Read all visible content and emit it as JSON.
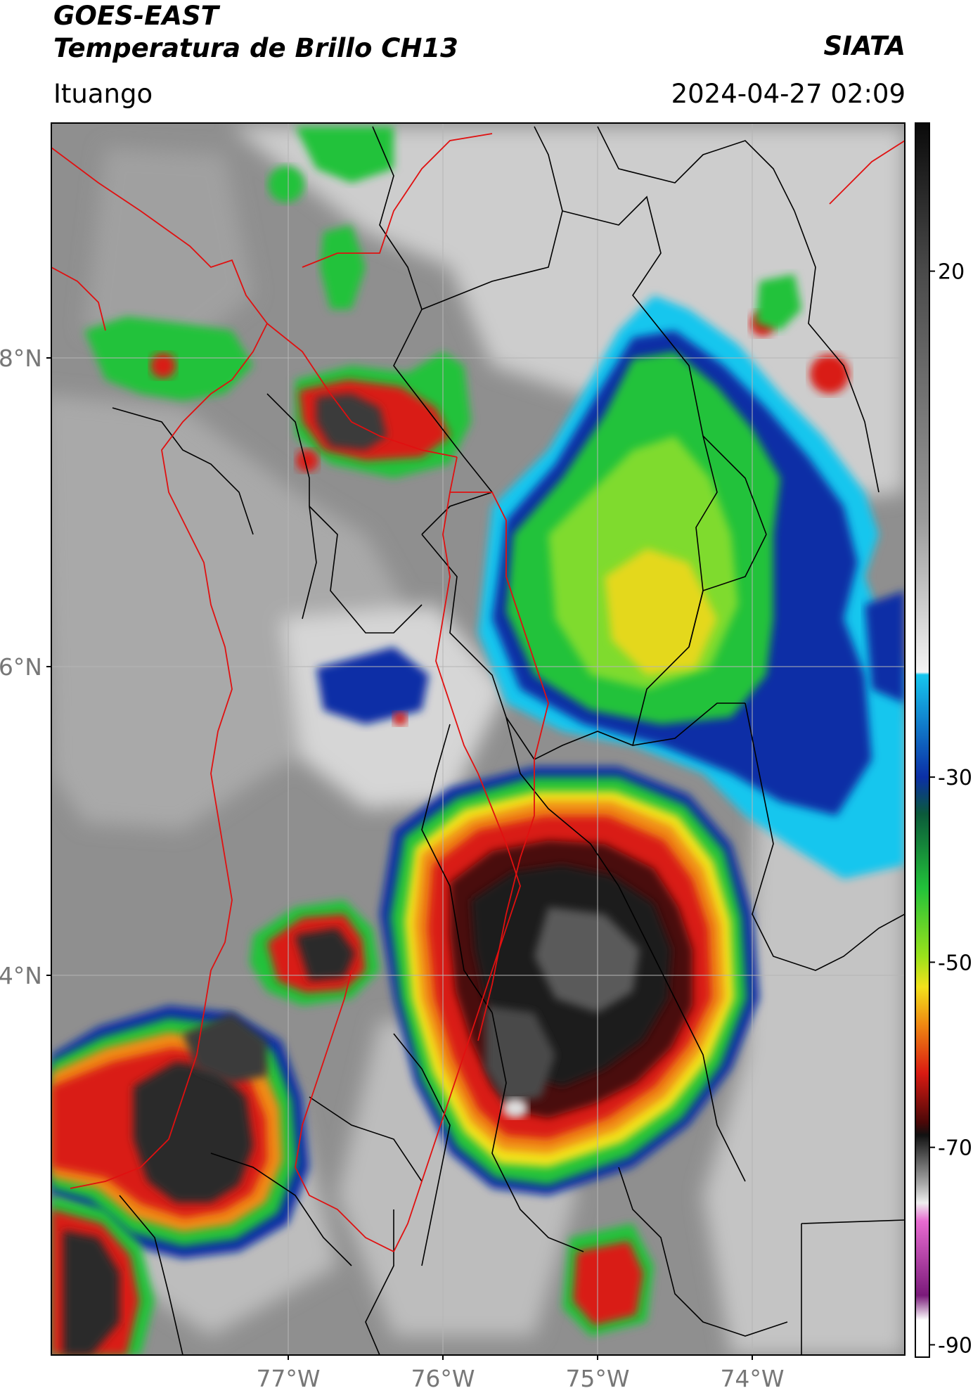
{
  "header": {
    "satellite": "GOES-EAST",
    "product": "Temperatura de Brillo CH13",
    "organization": "SIATA",
    "location": "Ituango",
    "datetime": "2024-04-27 02:09"
  },
  "map": {
    "lat_ticks": [
      "8°N",
      "6°N",
      "4°N"
    ],
    "lon_ticks": [
      "77°W",
      "76°W",
      "75°W",
      "74°W"
    ],
    "background_color": "#8f8f8f"
  },
  "colorbar": {
    "ticks": [
      "20",
      "-30",
      "-50",
      "-70",
      "-90"
    ],
    "scale_min": -90,
    "scale_max": 40,
    "tick_values": [
      20,
      -30,
      -50,
      -70,
      -90
    ],
    "colors": {
      "warm_gray": "#8a8a8a",
      "light_gray": "#e5e5e5",
      "cyan": "#16c6ee",
      "blue": "#0b2fa6",
      "green": "#22c23a",
      "yellow": "#f2e21b",
      "orange": "#f08a12",
      "red": "#d91a12",
      "dark_red": "#4a0808",
      "dark_gray": "#3a3a3a",
      "magenta": "#d63cb8",
      "purple": "#7a1a7a"
    }
  }
}
